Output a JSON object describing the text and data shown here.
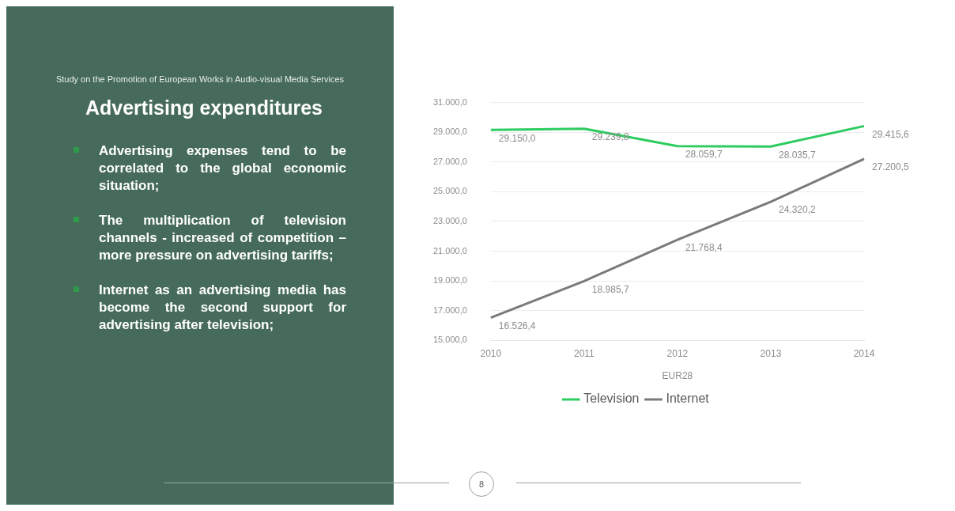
{
  "chart_data": {
    "type": "line",
    "title": "Advertising expenditures",
    "subtitle": "Study on the Promotion of European Works in Audio-visual Media Services",
    "annotations": [
      "Advertising expenses tend to be correlated to the global economic situation;",
      "The multiplication of television channels - increased of competition – more pressure on advertising tariffs;",
      "Internet as an advertising media has become the second support for advertising after television;",
      "8"
    ],
    "xlabel": "EUR28",
    "categories": [
      "2010",
      "2011",
      "2012",
      "2013",
      "2014"
    ],
    "series": [
      {
        "name": "Television",
        "color": "#2ecc60",
        "values": [
          29150.0,
          29239.8,
          28059.7,
          28035.7,
          29415.6
        ],
        "value_labels": [
          "29.150,0",
          "29.239,8",
          "28.059,7",
          "28.035,7",
          "29.415,6"
        ]
      },
      {
        "name": "Internet",
        "color": "#7a7a7a",
        "values": [
          16526.4,
          18985.7,
          21768.4,
          24320.2,
          27200.5
        ],
        "value_labels": [
          "16.526,4",
          "18.985,7",
          "21.768,4",
          "24.320,2",
          "27.200,5"
        ]
      }
    ],
    "ylim": [
      15000,
      31000
    ],
    "yticks": [
      {
        "value": 15000,
        "label": "15.000,0"
      },
      {
        "value": 17000,
        "label": "17.000,0"
      },
      {
        "value": 19000,
        "label": "19.000,0"
      },
      {
        "value": 21000,
        "label": "21.000,0"
      },
      {
        "value": 23000,
        "label": "23.000,0"
      },
      {
        "value": 25000,
        "label": "25.000,0"
      },
      {
        "value": 27000,
        "label": "27.000,0"
      },
      {
        "value": 29000,
        "label": "29.000,0"
      },
      {
        "value": 31000,
        "label": "31.000,0"
      }
    ],
    "grid": "y",
    "legend": "bottom",
    "marker": "none",
    "line_style": "solid"
  }
}
